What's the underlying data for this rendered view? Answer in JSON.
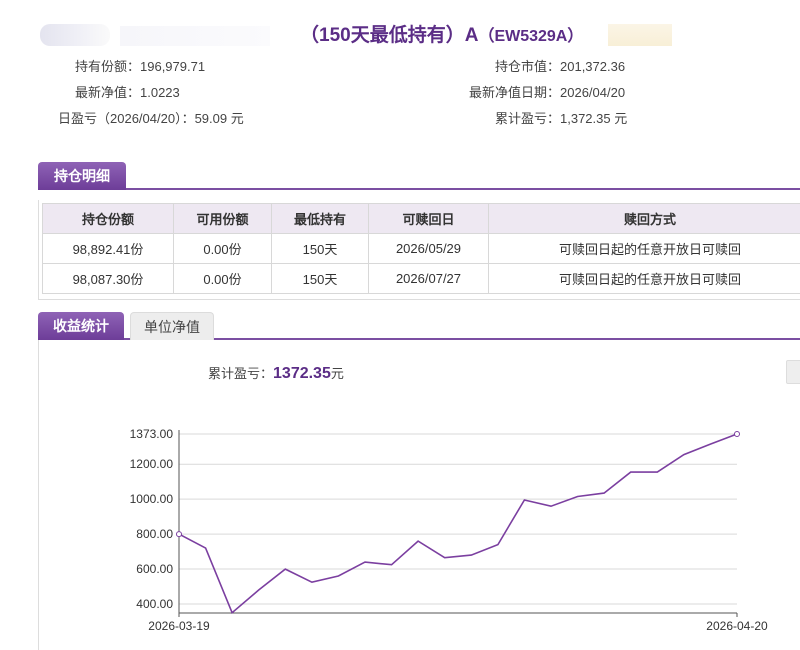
{
  "header": {
    "title": "（150天最低持有）A",
    "code": "（EW5329A）"
  },
  "summary": {
    "holding_shares_label": "持有份额：",
    "holding_shares": "196,979.71",
    "market_value_label": "持仓市值：",
    "market_value": "201,372.36",
    "nav_label": "最新净值：",
    "nav": "1.0223",
    "nav_date_label": "最新净值日期：",
    "nav_date": "2026/04/20",
    "daily_pl_label": "日盈亏（2026/04/20）：",
    "daily_pl": "59.09 元",
    "cum_pl_label": "累计盈亏：",
    "cum_pl": "1,372.35 元"
  },
  "tabs_top": {
    "detail": "持仓明细"
  },
  "table": {
    "headers": [
      "持仓份额",
      "可用份额",
      "最低持有",
      "可赎回日",
      "赎回方式"
    ],
    "rows": [
      [
        "98,892.41份",
        "0.00份",
        "150天",
        "2026/05/29",
        "可赎回日起的任意开放日可赎回"
      ],
      [
        "98,087.30份",
        "0.00份",
        "150天",
        "2026/07/27",
        "可赎回日起的任意开放日可赎回"
      ]
    ]
  },
  "tabs_chart": {
    "profit_stats": "收益统计",
    "unit_nav": "单位净值"
  },
  "cumulative": {
    "label": "累计盈亏：",
    "value": "1372.35",
    "unit": "元"
  },
  "chart_data": {
    "type": "line",
    "x_start_label": "2026-03-19",
    "x_end_label": "2026-04-20",
    "y_ticks": [
      "1373.00",
      "1200.00",
      "1000.00",
      "800.00",
      "600.00",
      "400.00"
    ],
    "y_tick_values": [
      1373,
      1200,
      1000,
      800,
      600,
      400
    ],
    "ylim": [
      400,
      1373
    ],
    "grid": true,
    "line_color": "#7b3fa0",
    "series": [
      {
        "values": [
          800,
          720,
          350,
          480,
          600,
          525,
          560,
          640,
          625,
          760,
          665,
          680,
          740,
          995,
          960,
          1015,
          1035,
          1155,
          1155,
          1255,
          1315,
          1373
        ]
      }
    ]
  }
}
